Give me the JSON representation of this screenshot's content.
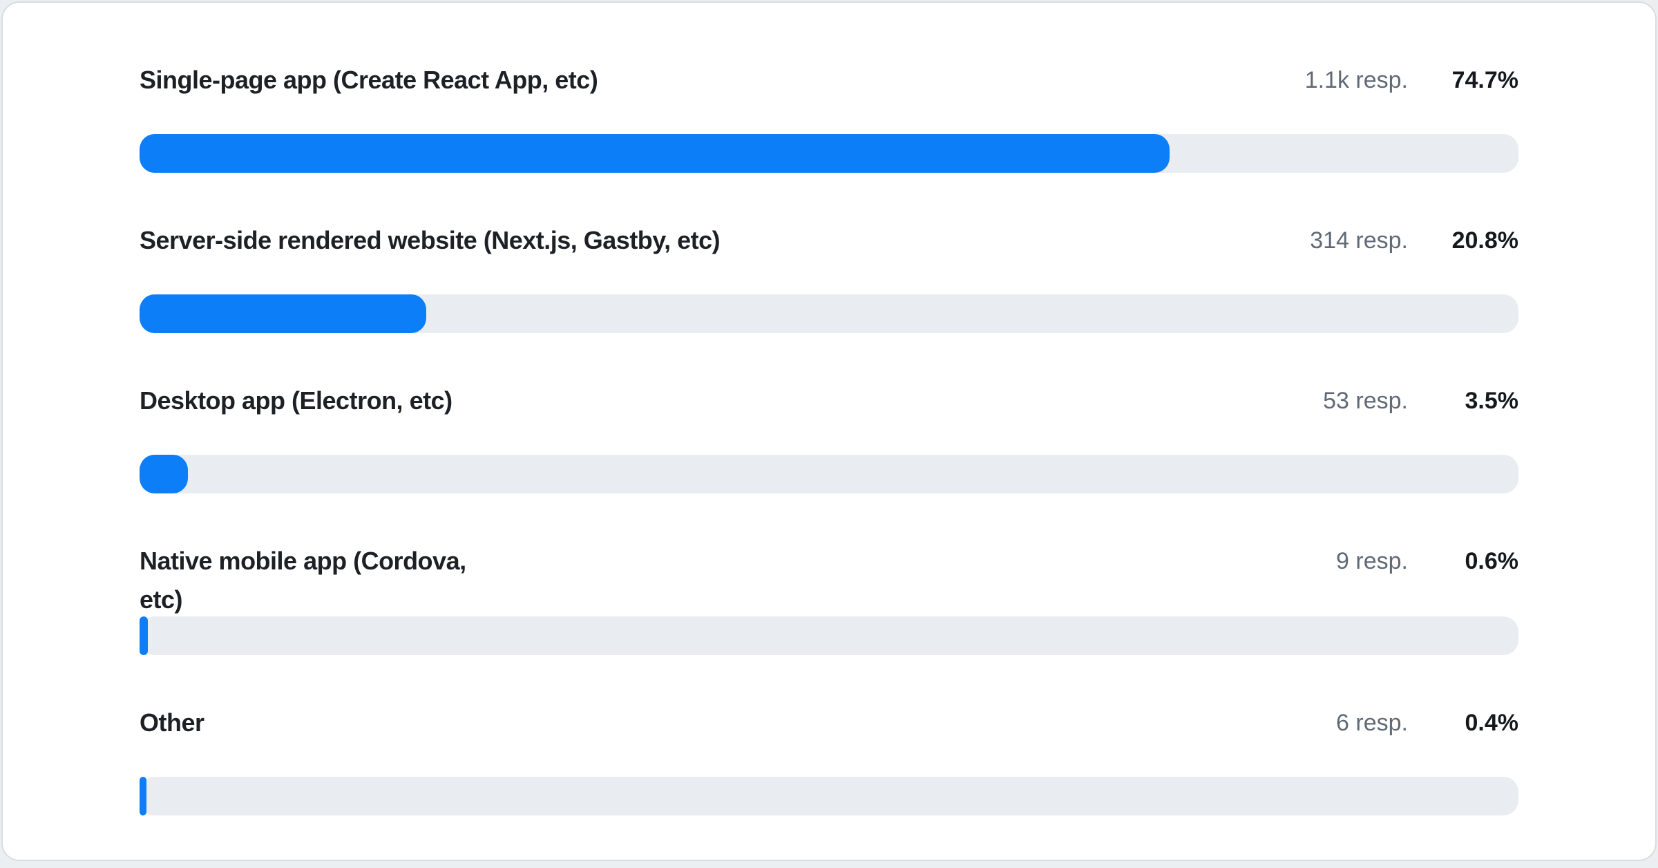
{
  "poll": {
    "options": [
      {
        "label": "Single-page app (Create React App, etc)",
        "responses_label": "1.1k resp.",
        "percent_label": "74.7%",
        "percent": 74.7
      },
      {
        "label": "Server-side rendered website (Next.js, Gastby, etc)",
        "responses_label": "314 resp.",
        "percent_label": "20.8%",
        "percent": 20.8
      },
      {
        "label": "Desktop app (Electron, etc)",
        "responses_label": "53 resp.",
        "percent_label": "3.5%",
        "percent": 3.5
      },
      {
        "label": "Native mobile app (Cordova,\netc)",
        "responses_label": "9 resp.",
        "percent_label": "0.6%",
        "percent": 0.6
      },
      {
        "label": "Other",
        "responses_label": "6 resp.",
        "percent_label": "0.4%",
        "percent": 0.4
      }
    ]
  },
  "colors": {
    "bar_fill": "#0b7ef8",
    "bar_track": "#e9ecf0",
    "label_text": "#1d2126",
    "muted_text": "#5f6a76",
    "percent_text": "#15181c",
    "card_border": "#d8dce1",
    "page_bg": "#eceff2"
  },
  "chart_data": {
    "type": "bar",
    "orientation": "horizontal",
    "title": "",
    "xlabel": "",
    "ylabel": "",
    "xlim": [
      0,
      100
    ],
    "grid": false,
    "legend": "none",
    "categories": [
      "Single-page app (Create React App, etc)",
      "Server-side rendered website (Next.js, Gastby, etc)",
      "Desktop app (Electron, etc)",
      "Native mobile app (Cordova, etc)",
      "Other"
    ],
    "series": [
      {
        "name": "percent_of_responses",
        "values": [
          74.7,
          20.8,
          3.5,
          0.6,
          0.4
        ]
      }
    ],
    "responses_labels": [
      "1.1k resp.",
      "314 resp.",
      "53 resp.",
      "9 resp.",
      "6 resp."
    ],
    "value_labels": [
      "74.7%",
      "20.8%",
      "3.5%",
      "0.6%",
      "0.4%"
    ]
  }
}
